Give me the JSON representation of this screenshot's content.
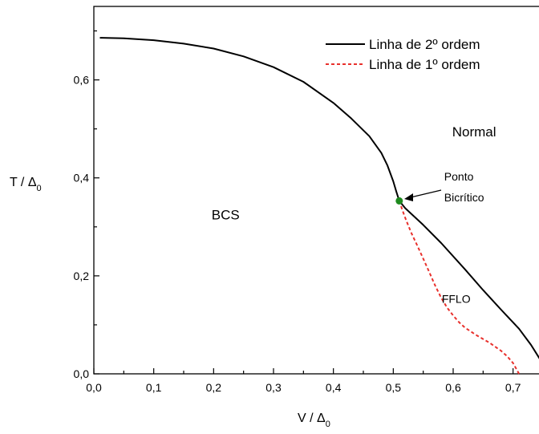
{
  "chart_data": {
    "type": "line",
    "xlabel": "V / Δ",
    "xlabel_sub": "0",
    "ylabel": "T / Δ",
    "ylabel_sub": "0",
    "xlim": [
      0.0,
      0.75
    ],
    "ylim": [
      0.0,
      0.75
    ],
    "x_ticks": [
      {
        "value": 0.0,
        "label": "0,0"
      },
      {
        "value": 0.1,
        "label": "0,1"
      },
      {
        "value": 0.2,
        "label": "0,2"
      },
      {
        "value": 0.3,
        "label": "0,3"
      },
      {
        "value": 0.4,
        "label": "0,4"
      },
      {
        "value": 0.5,
        "label": "0,5"
      },
      {
        "value": 0.6,
        "label": "0,6"
      },
      {
        "value": 0.7,
        "label": "0,7"
      }
    ],
    "y_ticks": [
      {
        "value": 0.0,
        "label": "0,0"
      },
      {
        "value": 0.2,
        "label": "0,2"
      },
      {
        "value": 0.4,
        "label": "0,4"
      },
      {
        "value": 0.6,
        "label": "0,6"
      }
    ],
    "grid": false,
    "legend_position": "top-right",
    "series": [
      {
        "name": "Linha de 2º ordem",
        "color": "#000000",
        "style": "solid",
        "x": [
          0.01,
          0.05,
          0.1,
          0.15,
          0.2,
          0.25,
          0.3,
          0.35,
          0.4,
          0.43,
          0.46,
          0.48,
          0.49,
          0.5,
          0.505,
          0.51,
          0.52,
          0.55,
          0.58,
          0.62,
          0.65,
          0.68,
          0.71,
          0.73,
          0.75
        ],
        "y": [
          0.686,
          0.685,
          0.681,
          0.674,
          0.664,
          0.648,
          0.626,
          0.596,
          0.553,
          0.521,
          0.485,
          0.451,
          0.426,
          0.393,
          0.372,
          0.353,
          0.338,
          0.304,
          0.267,
          0.213,
          0.171,
          0.131,
          0.092,
          0.059,
          0.02
        ]
      },
      {
        "name": "Linha de 1º ordem",
        "color": "#e8302c",
        "style": "dashed",
        "x": [
          0.51,
          0.515,
          0.52,
          0.53,
          0.54,
          0.55,
          0.56,
          0.57,
          0.58,
          0.59,
          0.6,
          0.61,
          0.62,
          0.64,
          0.66,
          0.68,
          0.69,
          0.7,
          0.705,
          0.71
        ],
        "y": [
          0.353,
          0.335,
          0.318,
          0.288,
          0.262,
          0.235,
          0.208,
          0.18,
          0.155,
          0.135,
          0.119,
          0.105,
          0.094,
          0.078,
          0.064,
          0.047,
          0.036,
          0.022,
          0.011,
          0.0
        ]
      }
    ],
    "points": [
      {
        "x": 0.51,
        "y": 0.353,
        "color": "#1e8a1e"
      }
    ],
    "regions": [
      {
        "label": "BCS",
        "x": 0.22,
        "y": 0.315
      },
      {
        "label": "Normal",
        "x": 0.635,
        "y": 0.485
      },
      {
        "label": "FFLO",
        "x": 0.605,
        "y": 0.145
      }
    ],
    "annotations": [
      {
        "text_lines": [
          "Ponto",
          "Bicrítico"
        ],
        "x": 0.585,
        "y": 0.395
      }
    ]
  }
}
